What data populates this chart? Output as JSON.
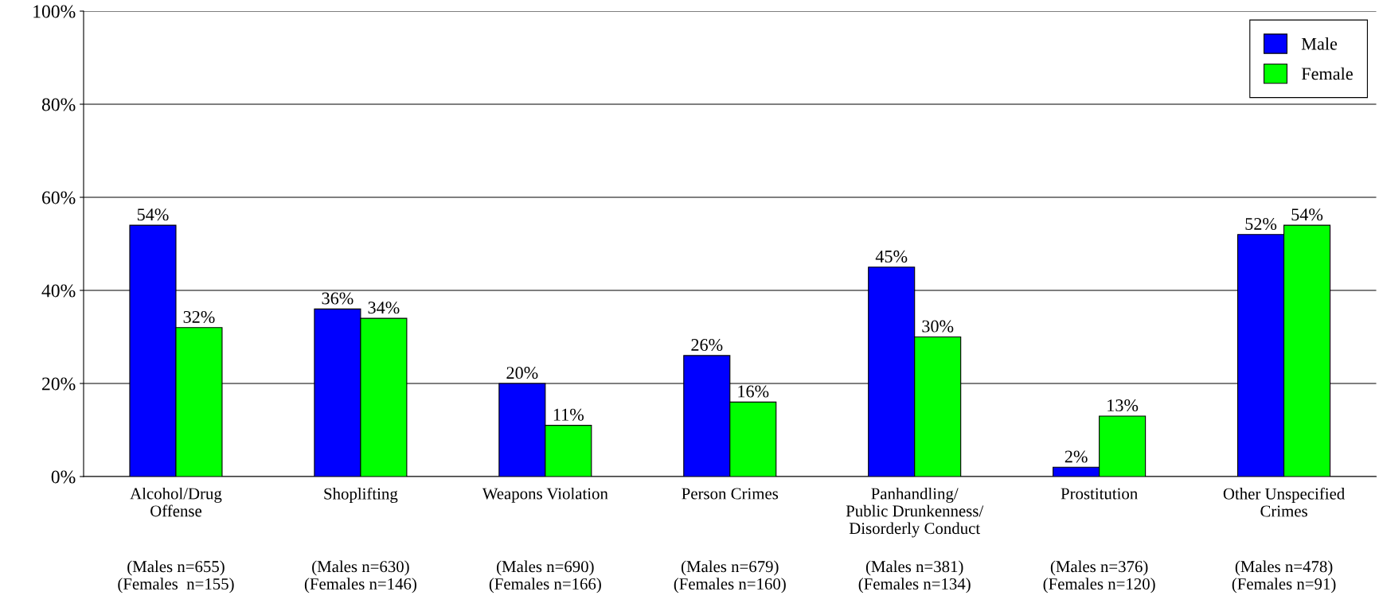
{
  "chart_data": {
    "type": "bar",
    "categories": [
      "Alcohol/Drug\nOffense",
      "Shoplifting",
      "Weapons Violation",
      "Person Crimes",
      "Panhandling/\nPublic Drunkenness/\nDisorderly Conduct",
      "Prostitution",
      "Other Unspecified\nCrimes"
    ],
    "series": [
      {
        "name": "Male",
        "color": "#0000ff",
        "values": [
          54,
          36,
          20,
          26,
          45,
          2,
          52
        ],
        "value_labels": [
          "54%",
          "36%",
          "20%",
          "26%",
          "45%",
          "2%",
          "52%"
        ]
      },
      {
        "name": "Female",
        "color": "#00ff00",
        "values": [
          32,
          34,
          11,
          16,
          30,
          13,
          54
        ],
        "value_labels": [
          "32%",
          "34%",
          "11%",
          "16%",
          "30%",
          "13%",
          "54%"
        ]
      }
    ],
    "annotations": [
      "(Males n=655)\n(Females  n=155)",
      "(Males n=630)\n(Females n=146)",
      "(Males n=690)\n(Females n=166)",
      "(Males n=679)\n(Females n=160)",
      "(Males n=381)\n(Females n=134)",
      "(Males n=376)\n(Females n=120)",
      "(Males n=478)\n(Females n=91)"
    ],
    "ylim": [
      0,
      100
    ],
    "yticks": [
      {
        "value": 0,
        "label": "0%"
      },
      {
        "value": 20,
        "label": "20%"
      },
      {
        "value": 40,
        "label": "40%"
      },
      {
        "value": 60,
        "label": "60%"
      },
      {
        "value": 80,
        "label": "80%"
      },
      {
        "value": 100,
        "label": "100%"
      }
    ],
    "grid": "y",
    "legend": "top right"
  }
}
